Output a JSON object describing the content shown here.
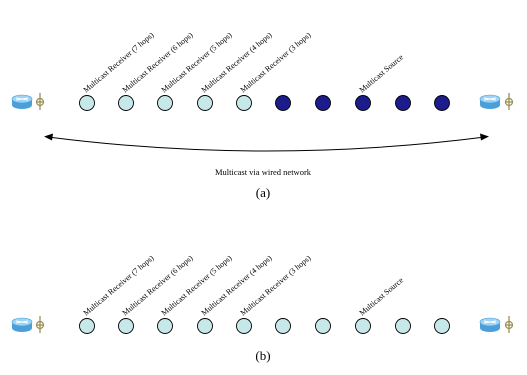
{
  "colors": {
    "node_light": "#c6e8e8",
    "node_dark": "#1c1c8c",
    "node_stroke": "#000000",
    "router_body": "#4a9fd8",
    "router_top": "#9fd3f5",
    "antenna": "#9a8f55"
  },
  "panels": [
    {
      "caption": "(a)",
      "labels": [
        "Multicast Receiver (7 hops)",
        "Multicast Receiver (6 hops)",
        "Multicast Receiver (5 hops)",
        "Multicast Receiver (4 hops)",
        "Multicast Receiver (3 hops)",
        "Multicast Source"
      ],
      "node_fill": [
        "light",
        "light",
        "light",
        "light",
        "light",
        "dark",
        "dark",
        "dark",
        "dark",
        "dark"
      ],
      "wired_label": "Multicast via wired network",
      "left_router_icon": "router-icon",
      "right_router_icon": "router-icon"
    },
    {
      "caption": "(b)",
      "labels": [
        "Multicast Receiver (7 hops)",
        "Multicast Receiver (6 hops)",
        "Multicast Receiver (5 hops)",
        "Multicast Receiver (4 hops)",
        "Multicast Receiver (3 hops)",
        "Multicast Source"
      ],
      "node_fill": [
        "light",
        "light",
        "light",
        "light",
        "light",
        "light",
        "light",
        "light",
        "light",
        "light"
      ],
      "left_router_icon": "router-icon",
      "right_router_icon": "router-icon"
    }
  ]
}
